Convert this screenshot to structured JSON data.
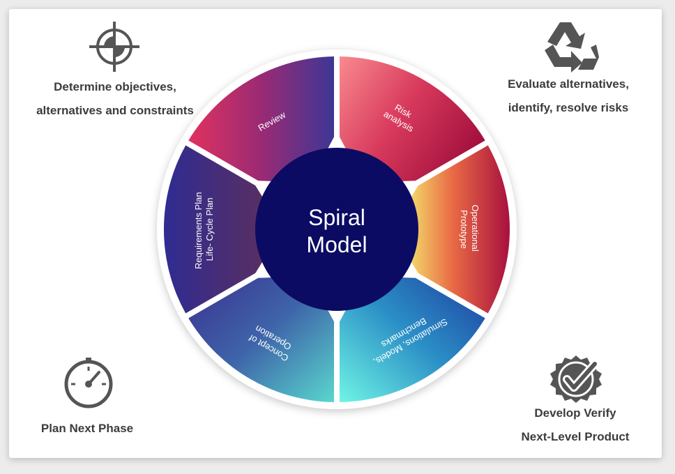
{
  "corners": {
    "top_left": [
      "Determine objectives,",
      "alternatives and constraints"
    ],
    "top_right": [
      "Evaluate alternatives,",
      "identify, resolve risks"
    ],
    "bottom_left": [
      "Plan Next Phase"
    ],
    "bottom_right": [
      "Develop Verify",
      "Next-Level Product"
    ]
  },
  "center": {
    "line1": "Spiral",
    "line2": "Model"
  },
  "segments": {
    "review": [
      "Review"
    ],
    "risk": [
      "Risk",
      "analysis"
    ],
    "operational": [
      "Operational",
      "Prototype"
    ],
    "simulations": [
      "Simulations, Models,",
      "Benchmarks"
    ],
    "concept": [
      "Concept of",
      "Operation"
    ],
    "requirements": [
      "Requirements Plan",
      "Life- Cycle Plan"
    ]
  },
  "colors": {
    "center": "#0b0b63",
    "icon": "#555555",
    "text": "#3c3c3c"
  }
}
